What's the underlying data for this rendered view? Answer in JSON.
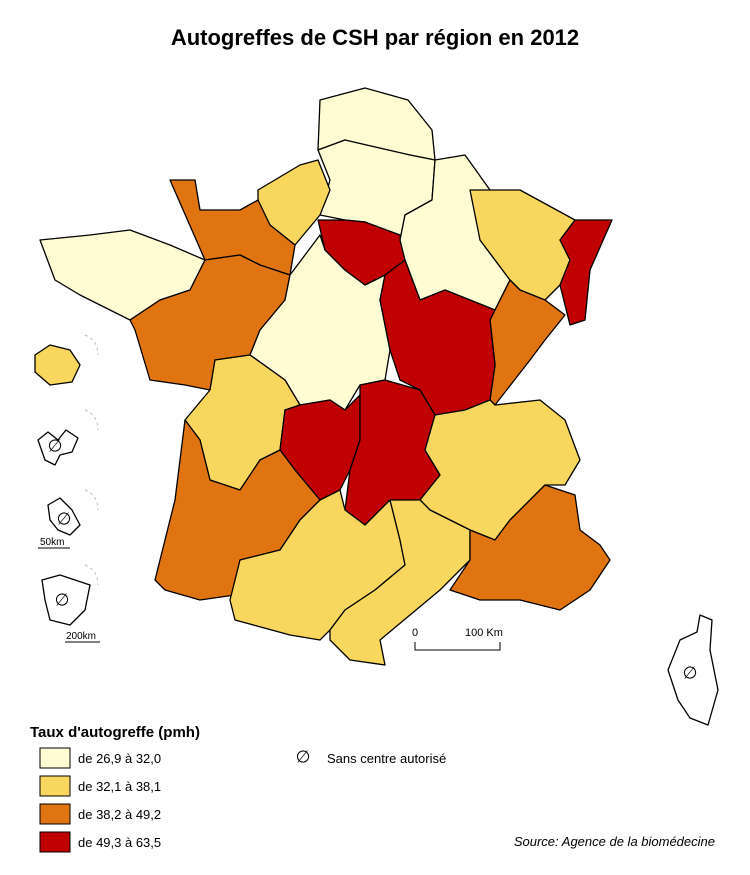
{
  "title": "Autogreffes de CSH par région en 2012",
  "legend": {
    "title": "Taux d'autogreffe (pmh)",
    "items": [
      {
        "label": "de 26,9 à 32,0",
        "color": "#fffbd3"
      },
      {
        "label": "de 32,1 à 38,1",
        "color": "#f9d75e"
      },
      {
        "label": "de 38,2 à 49,2",
        "color": "#e07410"
      },
      {
        "label": "de 49,3 à 63,5",
        "color": "#c00000"
      }
    ]
  },
  "no_center": {
    "symbol": "∅",
    "label": "Sans centre autorisé"
  },
  "scale_bar": {
    "start": "0",
    "end": "100 Km"
  },
  "inset_scales": [
    "50km",
    "200km"
  ],
  "source": "Source: Agence de la biomédecine"
}
